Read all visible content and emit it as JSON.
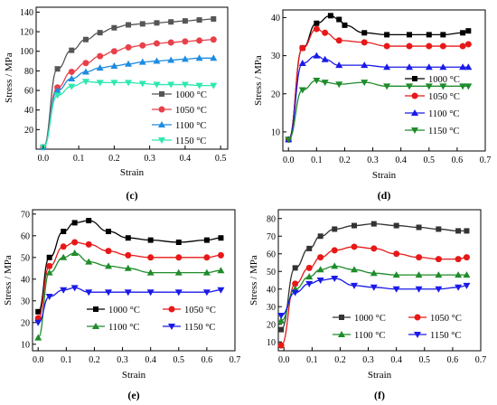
{
  "chart_data": [
    {
      "type": "line",
      "panel_label": "(c)",
      "xlabel": "Strain",
      "ylabel": "Stress / MPa",
      "xlim": [
        -0.02,
        0.52
      ],
      "ylim": [
        0,
        145
      ],
      "xticks": [
        "0.0",
        "0.1",
        "0.2",
        "0.3",
        "0.4",
        "0.5"
      ],
      "yticks": [
        "20",
        "40",
        "60",
        "80",
        "100",
        "120",
        "140"
      ],
      "legend_position": "bottom-right",
      "series": [
        {
          "name": "1000 °C",
          "color": "#555555",
          "marker": "square",
          "x": [
            0,
            0.04,
            0.08,
            0.12,
            0.16,
            0.2,
            0.24,
            0.28,
            0.32,
            0.36,
            0.4,
            0.44,
            0.48
          ],
          "y": [
            2,
            82,
            101,
            112,
            119,
            124,
            127,
            128,
            129,
            130,
            131,
            132,
            133
          ]
        },
        {
          "name": "1050 °C",
          "color": "#e8404a",
          "marker": "circle",
          "x": [
            0,
            0.04,
            0.08,
            0.12,
            0.16,
            0.2,
            0.24,
            0.28,
            0.32,
            0.36,
            0.4,
            0.44,
            0.48
          ],
          "y": [
            2,
            63,
            79,
            88,
            95,
            100,
            104,
            106,
            108,
            109,
            110,
            111,
            112
          ]
        },
        {
          "name": "1100 °C",
          "color": "#1e8ce0",
          "marker": "triangle-up",
          "x": [
            0,
            0.04,
            0.08,
            0.12,
            0.16,
            0.2,
            0.24,
            0.28,
            0.32,
            0.36,
            0.4,
            0.44,
            0.48
          ],
          "y": [
            2,
            60,
            72,
            79,
            83,
            85,
            87,
            89,
            90,
            91,
            92,
            93,
            93
          ]
        },
        {
          "name": "1150 °C",
          "color": "#2ee8b0",
          "marker": "triangle-down",
          "x": [
            0,
            0.04,
            0.08,
            0.12,
            0.16,
            0.2,
            0.24,
            0.28,
            0.32,
            0.36,
            0.4,
            0.44,
            0.48
          ],
          "y": [
            2,
            55,
            64,
            69,
            68,
            68,
            68,
            67,
            66,
            66,
            66,
            65,
            65
          ]
        }
      ]
    },
    {
      "type": "line",
      "panel_label": "(d)",
      "xlabel": "Strain",
      "ylabel": "Stress / MPa",
      "xlim": [
        -0.02,
        0.7
      ],
      "ylim": [
        5,
        42
      ],
      "xticks": [
        "0.0",
        "0.1",
        "0.2",
        "0.3",
        "0.4",
        "0.5",
        "0.6",
        "0.7"
      ],
      "yticks": [
        "10",
        "20",
        "30",
        "40"
      ],
      "legend_position": "right",
      "series": [
        {
          "name": "1000 °C",
          "color": "#000000",
          "marker": "square",
          "x": [
            0,
            0.05,
            0.1,
            0.15,
            0.18,
            0.2,
            0.27,
            0.35,
            0.43,
            0.5,
            0.55,
            0.62,
            0.64
          ],
          "y": [
            8,
            32,
            38.5,
            40.5,
            39.5,
            38,
            36,
            35.5,
            35.5,
            35.5,
            35.5,
            36,
            36.5
          ]
        },
        {
          "name": "1050 °C",
          "color": "#e81818",
          "marker": "circle",
          "x": [
            0,
            0.05,
            0.1,
            0.13,
            0.18,
            0.27,
            0.35,
            0.43,
            0.5,
            0.55,
            0.62,
            0.64
          ],
          "y": [
            8,
            32,
            37,
            36,
            34,
            33.5,
            32.5,
            32.5,
            32.5,
            32.5,
            32.5,
            33
          ]
        },
        {
          "name": "1100 °C",
          "color": "#1a1ae8",
          "marker": "triangle-up",
          "x": [
            0,
            0.05,
            0.1,
            0.13,
            0.18,
            0.27,
            0.35,
            0.43,
            0.5,
            0.55,
            0.62,
            0.64
          ],
          "y": [
            8,
            28,
            30,
            29,
            27.5,
            27.5,
            27,
            27,
            27,
            27,
            27,
            27
          ]
        },
        {
          "name": "1150 °C",
          "color": "#1e8c2a",
          "marker": "triangle-down",
          "x": [
            0,
            0.05,
            0.1,
            0.13,
            0.18,
            0.27,
            0.35,
            0.43,
            0.5,
            0.55,
            0.62,
            0.64
          ],
          "y": [
            8,
            21,
            23.5,
            23,
            22.5,
            23,
            22,
            22,
            22,
            22,
            22,
            22
          ]
        }
      ]
    },
    {
      "type": "line",
      "panel_label": "(e)",
      "xlabel": "Strain",
      "ylabel": "Stress / MPa",
      "xlim": [
        -0.02,
        0.7
      ],
      "ylim": [
        7,
        72
      ],
      "xticks": [
        "0.0",
        "0.1",
        "0.2",
        "0.3",
        "0.4",
        "0.5",
        "0.6",
        "0.7"
      ],
      "yticks": [
        "10",
        "20",
        "30",
        "40",
        "50",
        "60",
        "70"
      ],
      "legend_position": "bottom-right",
      "series": [
        {
          "name": "1000 °C",
          "color": "#000000",
          "marker": "square",
          "x": [
            0,
            0.04,
            0.09,
            0.13,
            0.18,
            0.25,
            0.32,
            0.4,
            0.5,
            0.6,
            0.65
          ],
          "y": [
            25,
            50,
            62,
            66,
            67,
            62,
            59,
            58,
            57,
            58,
            59
          ]
        },
        {
          "name": "1050 °C",
          "color": "#e81818",
          "marker": "circle",
          "x": [
            0,
            0.04,
            0.09,
            0.13,
            0.18,
            0.25,
            0.32,
            0.4,
            0.5,
            0.6,
            0.65
          ],
          "y": [
            22,
            46,
            55,
            57,
            56,
            53,
            51,
            50,
            50,
            50,
            51
          ]
        },
        {
          "name": "1100 °C",
          "color": "#1e8c2a",
          "marker": "triangle-up",
          "x": [
            0,
            0.04,
            0.09,
            0.13,
            0.18,
            0.25,
            0.32,
            0.4,
            0.5,
            0.6,
            0.65
          ],
          "y": [
            13,
            43,
            50,
            52,
            48,
            46,
            45,
            43,
            43,
            43,
            44
          ]
        },
        {
          "name": "1150 °C",
          "color": "#1a1ae8",
          "marker": "triangle-down",
          "x": [
            0,
            0.04,
            0.09,
            0.13,
            0.18,
            0.25,
            0.32,
            0.4,
            0.5,
            0.6,
            0.65
          ],
          "y": [
            20,
            32,
            35,
            36,
            34,
            34,
            34,
            34,
            34,
            34,
            35
          ]
        }
      ]
    },
    {
      "type": "line",
      "panel_label": "(f)",
      "xlabel": "Strain",
      "ylabel": "Stress / MPa",
      "xlim": [
        -0.02,
        0.7
      ],
      "ylim": [
        5,
        85
      ],
      "xticks": [
        "0.0",
        "0.1",
        "0.2",
        "0.3",
        "0.4",
        "0.5",
        "0.6",
        "0.7"
      ],
      "yticks": [
        "10",
        "20",
        "30",
        "40",
        "50",
        "60",
        "70",
        "80"
      ],
      "legend_position": "bottom-right",
      "series": [
        {
          "name": "1000 °C",
          "color": "#333333",
          "marker": "square",
          "x": [
            -0.01,
            0.04,
            0.09,
            0.13,
            0.18,
            0.25,
            0.32,
            0.4,
            0.48,
            0.55,
            0.62,
            0.65
          ],
          "y": [
            17,
            52,
            63,
            70,
            74,
            76,
            77,
            76,
            75,
            74,
            73,
            73
          ]
        },
        {
          "name": "1050 °C",
          "color": "#e81818",
          "marker": "circle",
          "x": [
            -0.01,
            0.04,
            0.09,
            0.13,
            0.18,
            0.25,
            0.32,
            0.4,
            0.48,
            0.55,
            0.62,
            0.65
          ],
          "y": [
            8,
            43,
            52,
            58,
            62,
            64,
            63,
            60,
            58,
            57,
            57,
            58
          ]
        },
        {
          "name": "1100 °C",
          "color": "#1e8c2a",
          "marker": "triangle-up",
          "x": [
            -0.01,
            0.04,
            0.09,
            0.13,
            0.18,
            0.25,
            0.32,
            0.4,
            0.48,
            0.55,
            0.62,
            0.65
          ],
          "y": [
            22,
            40,
            47,
            51,
            53,
            51,
            49,
            48,
            48,
            48,
            48,
            48
          ]
        },
        {
          "name": "1150 °C",
          "color": "#1a1ae8",
          "marker": "triangle-down",
          "x": [
            -0.01,
            0.04,
            0.09,
            0.13,
            0.18,
            0.25,
            0.32,
            0.4,
            0.48,
            0.55,
            0.62,
            0.65
          ],
          "y": [
            25,
            38,
            43,
            45,
            46,
            42,
            41,
            40,
            40,
            40,
            41,
            42
          ]
        }
      ]
    }
  ]
}
